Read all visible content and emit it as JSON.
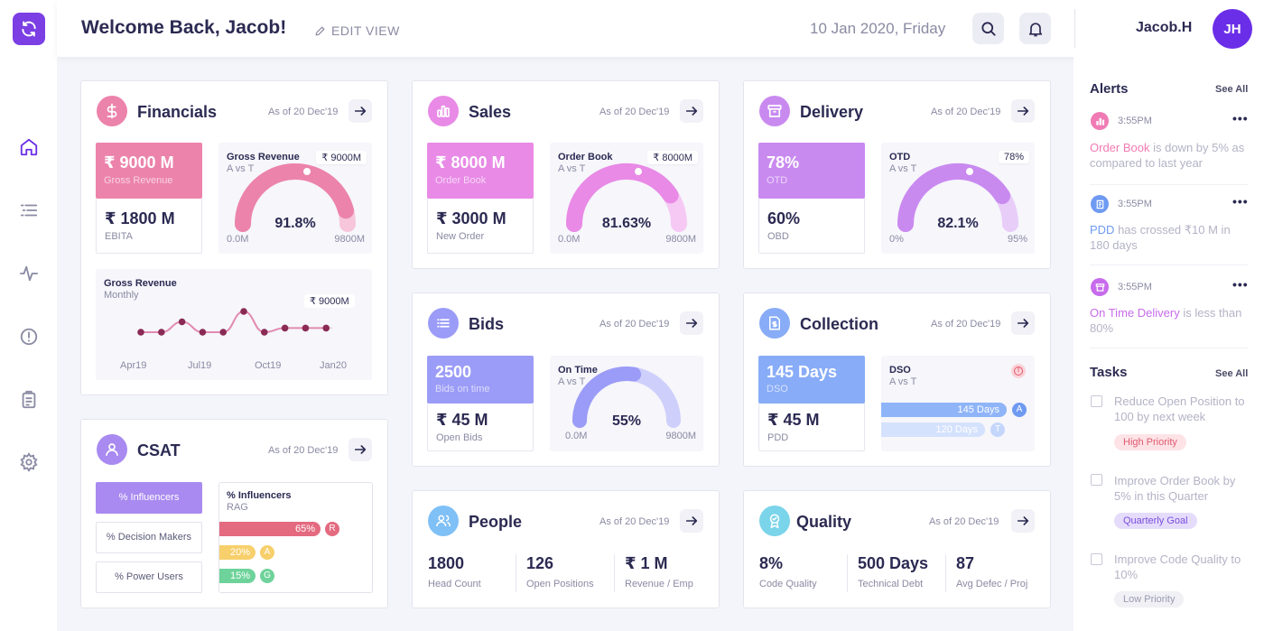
{
  "header": {
    "welcome": "Welcome Back, Jacob!",
    "edit_view": "EDIT VIEW",
    "date": "10 Jan 2020, Friday",
    "username": "Jacob.H",
    "avatar_initials": "JH",
    "icons": [
      "search-icon",
      "bell-icon"
    ]
  },
  "sidebar": {
    "logo_icon": "refresh-icon",
    "items": [
      "home-icon",
      "list-icon",
      "activity-icon",
      "alert-icon",
      "clipboard-icon",
      "gear-icon"
    ]
  },
  "financials": {
    "title": "Financials",
    "as_of": "As of 20 Dec'19",
    "kpi1_value": "₹ 9000 M",
    "kpi1_label": "Gross Revenue",
    "kpi2_value": "₹ 1800 M",
    "kpi2_label": "EBITA",
    "gauge": {
      "title": "Gross Revenue",
      "subtitle": "A vs T",
      "target": "₹ 9000M",
      "percent": "91.8%",
      "fraction": 0.918,
      "min": "0.0M",
      "max": "9800M"
    },
    "trend": {
      "title": "Gross Revenue",
      "subtitle": "Monthly",
      "bubble": "₹ 9000M",
      "x_labels": [
        "Apr19",
        "Jul19",
        "Oct19",
        "Jan20"
      ],
      "values": [
        3,
        3,
        8,
        3,
        3,
        13,
        3,
        5,
        5,
        5
      ]
    }
  },
  "sales": {
    "title": "Sales",
    "as_of": "As of 20 Dec'19",
    "kpi1_value": "₹ 8000 M",
    "kpi1_label": "Order Book",
    "kpi2_value": "₹ 3000 M",
    "kpi2_label": "New Order",
    "gauge": {
      "title": "Order Book",
      "subtitle": "A vs T",
      "target": "₹ 8000M",
      "percent": "81.63%",
      "fraction": 0.8163,
      "min": "0.0M",
      "max": "9800M"
    }
  },
  "delivery": {
    "title": "Delivery",
    "as_of": "As of 20 Dec'19",
    "kpi1_value": "78%",
    "kpi1_label": "OTD",
    "kpi2_value": "60%",
    "kpi2_label": "OBD",
    "gauge": {
      "title": "OTD",
      "subtitle": "A vs T",
      "target": "78%",
      "percent": "82.1%",
      "fraction": 0.821,
      "min": "0%",
      "max": "95%"
    }
  },
  "bids": {
    "title": "Bids",
    "as_of": "As of 20 Dec'19",
    "kpi1_value": "2500",
    "kpi1_label": "Bids on time",
    "kpi2_value": "₹ 45 M",
    "kpi2_label": "Open Bids",
    "gauge": {
      "title": "On Time",
      "subtitle": "A vs T",
      "percent": "55%",
      "fraction": 0.55,
      "min": "0.0M",
      "max": "9800M"
    }
  },
  "collection": {
    "title": "Collection",
    "as_of": "As of 20 Dec'19",
    "kpi1_value": "145 Days",
    "kpi1_label": "DSO",
    "kpi2_value": "₹ 45 M",
    "kpi2_label": "PDD",
    "dso": {
      "title": "DSO",
      "subtitle": "A vs T",
      "bars": [
        {
          "label": "145 Days",
          "badge": "A",
          "fraction": 1.0
        },
        {
          "label": "120 Days",
          "badge": "T",
          "fraction": 0.83
        }
      ]
    }
  },
  "csat": {
    "title": "CSAT",
    "as_of": "As of 20 Dec'19",
    "tabs": [
      "% Influencers",
      "% Decision Makers",
      "% Power Users"
    ],
    "rag": {
      "title": "% Influencers",
      "subtitle": "RAG",
      "bars": [
        {
          "label": "65%",
          "badge": "R",
          "fraction": 0.65,
          "color": "#e36a7f"
        },
        {
          "label": "20%",
          "badge": "A",
          "fraction": 0.2,
          "color": "#f7cf6b"
        },
        {
          "label": "15%",
          "badge": "G",
          "fraction": 0.15,
          "color": "#6ed39a"
        }
      ]
    }
  },
  "people": {
    "title": "People",
    "as_of": "As of 20 Dec'19",
    "metrics": [
      {
        "value": "1800",
        "label": "Head Count"
      },
      {
        "value": "126",
        "label": "Open Positions"
      },
      {
        "value": "₹ 1 M",
        "label": "Revenue / Emp"
      }
    ]
  },
  "quality": {
    "title": "Quality",
    "as_of": "As of 20 Dec'19",
    "metrics": [
      {
        "value": "8%",
        "label": "Code Quality"
      },
      {
        "value": "500 Days",
        "label": "Technical Debt"
      },
      {
        "value": "87",
        "label": "Avg Defec / Proj"
      }
    ]
  },
  "alerts": {
    "title": "Alerts",
    "see_all": "See All",
    "items": [
      {
        "time": "3:55PM",
        "highlight": "Order Book",
        "text": " is down by 5% as compared to last year",
        "color": "#f07bb4"
      },
      {
        "time": "3:55PM",
        "highlight": "PDD",
        "text": " has crossed ₹10 M in 180 days",
        "color": "#6f9af2"
      },
      {
        "time": "3:55PM",
        "highlight": "On Time Delivery",
        "text": " is less than 80%",
        "color": "#c76bec"
      }
    ]
  },
  "tasks": {
    "title": "Tasks",
    "see_all": "See All",
    "items": [
      {
        "text": "Reduce Open Position to 100 by next week",
        "tag": "High Priority",
        "tag_bg": "#fde3e6",
        "tag_fg": "#e0596f"
      },
      {
        "text": "Improve Order Book by 5% in this Quarter",
        "tag": "Quarterly Goal",
        "tag_bg": "#e5dcfc",
        "tag_fg": "#7a4ddc"
      },
      {
        "text": "Improve Code Quality to 10%",
        "tag": "Low Priority",
        "tag_bg": "#f0f0f5",
        "tag_fg": "#9a9ab0"
      }
    ]
  },
  "colors": {
    "financials": "#ec83ab",
    "sales": "#e88ae6",
    "delivery": "#c98af0",
    "bids": "#9b9cf7",
    "collection": "#88acf7",
    "csat": "#a88af0",
    "people": "#7fc0f6",
    "quality": "#7ad4ea"
  }
}
